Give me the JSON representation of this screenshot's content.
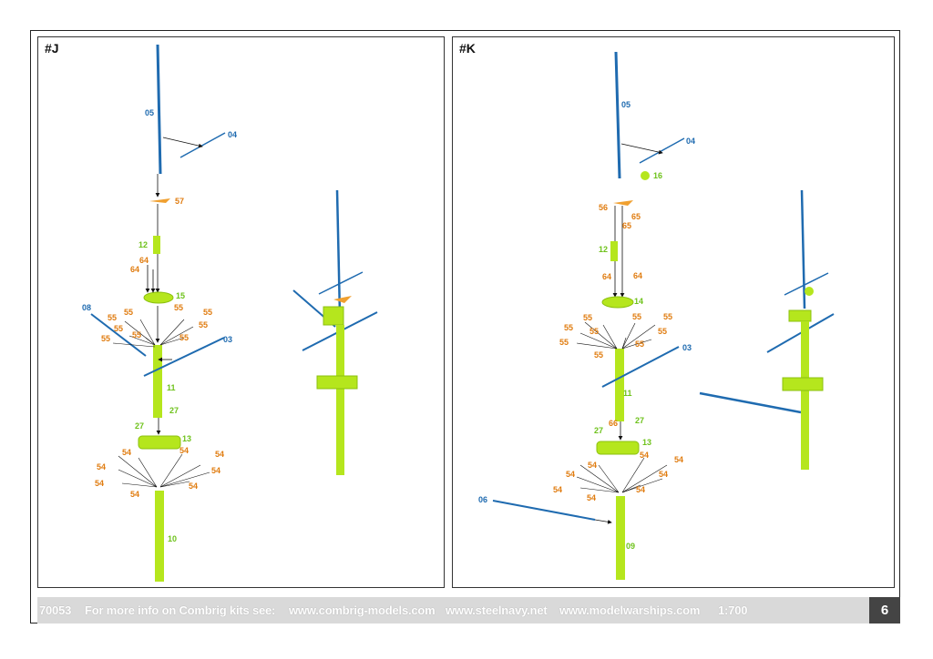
{
  "panels": {
    "j": {
      "title": "#J"
    },
    "k": {
      "title": "#K"
    }
  },
  "labels_j": {
    "p05": "05",
    "p04": "04",
    "p57": "57",
    "p12": "12",
    "p64a": "64",
    "p64b": "64",
    "p15": "15",
    "p08": "08",
    "p55": "55",
    "p03": "03",
    "p11": "11",
    "p27": "27",
    "p13": "13",
    "p54": "54",
    "p10": "10"
  },
  "labels_k": {
    "p05": "05",
    "p04": "04",
    "p16": "16",
    "p56": "56",
    "p65": "65",
    "p12": "12",
    "p64": "64",
    "p14": "14",
    "p55": "55",
    "p03": "03",
    "p11": "11",
    "p27": "27",
    "p66": "66",
    "p13": "13",
    "p54": "54",
    "p06": "06",
    "p09": "09"
  },
  "footer": {
    "code": "70053",
    "info": "For more info on Combrig kits see:",
    "site1": "www.combrig-models.com",
    "site2": "www.steelnavy.net",
    "site3": "www.modelwarships.com",
    "scale": "1:700",
    "page": "6"
  },
  "colors": {
    "blue": "#1f6bb0",
    "green": "#b5e61d",
    "orange": "#f0a030"
  }
}
